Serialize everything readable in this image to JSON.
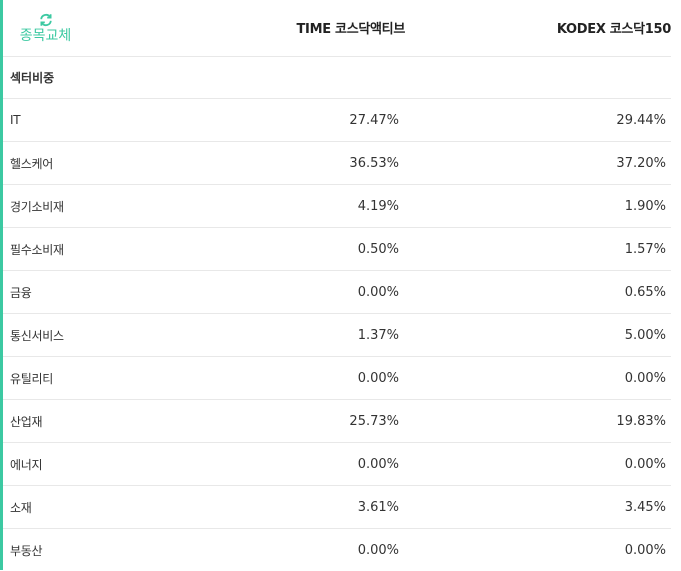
{
  "colors": {
    "accent": "#3cc9a2",
    "border": "#e8e8e8",
    "text": "#333333"
  },
  "header": {
    "swap_icon": "refresh-icon",
    "swap_label": "종목교체",
    "col_a": "TIME 코스닥액티브",
    "col_b": "KODEX 코스닥150"
  },
  "section": {
    "title": "섹터비중"
  },
  "rows": [
    {
      "name": "IT",
      "a": "27.47%",
      "b": "29.44%"
    },
    {
      "name": "헬스케어",
      "a": "36.53%",
      "b": "37.20%"
    },
    {
      "name": "경기소비재",
      "a": "4.19%",
      "b": "1.90%"
    },
    {
      "name": "필수소비재",
      "a": "0.50%",
      "b": "1.57%"
    },
    {
      "name": "금융",
      "a": "0.00%",
      "b": "0.65%"
    },
    {
      "name": "통신서비스",
      "a": "1.37%",
      "b": "5.00%"
    },
    {
      "name": "유틸리티",
      "a": "0.00%",
      "b": "0.00%"
    },
    {
      "name": "산업재",
      "a": "25.73%",
      "b": "19.83%"
    },
    {
      "name": "에너지",
      "a": "0.00%",
      "b": "0.00%"
    },
    {
      "name": "소재",
      "a": "3.61%",
      "b": "3.45%"
    },
    {
      "name": "부동산",
      "a": "0.00%",
      "b": "0.00%"
    }
  ]
}
